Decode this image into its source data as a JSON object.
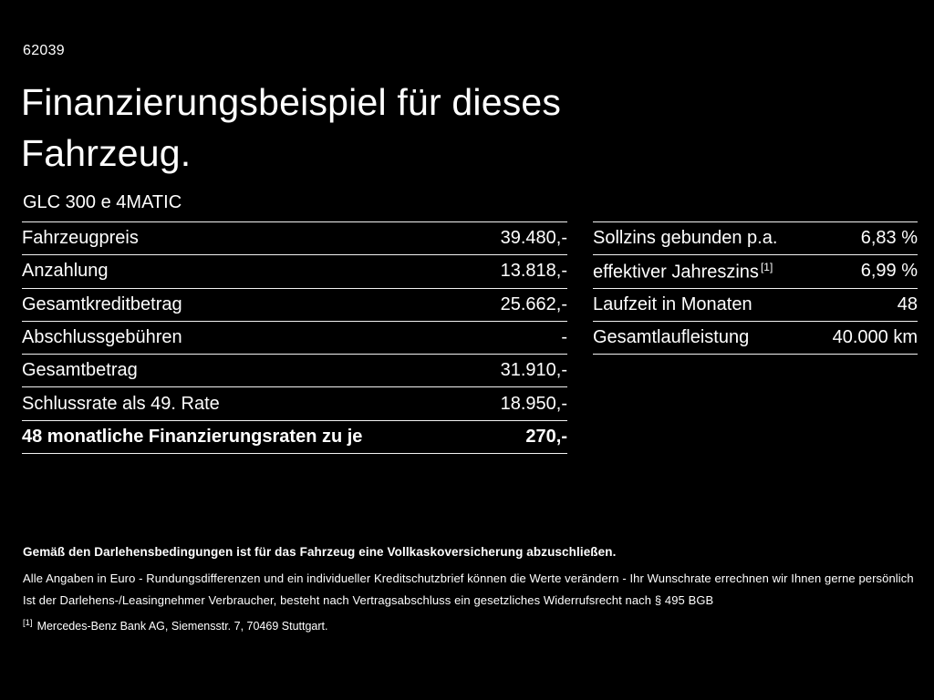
{
  "page": {
    "doc_id": "62039",
    "title_line1": "Finanzierungsbeispiel für dieses",
    "title_line2": "Fahrzeug.",
    "model": "GLC 300 e 4MATIC"
  },
  "left_table": {
    "rows": [
      {
        "label": "Fahrzeugpreis",
        "value": "39.480,-"
      },
      {
        "label": "Anzahlung",
        "value": "13.818,-"
      },
      {
        "label": "Gesamtkreditbetrag",
        "value": "25.662,-"
      },
      {
        "label": "Abschlussgebühren",
        "value": "-"
      },
      {
        "label": "Gesamtbetrag",
        "value": "31.910,-"
      },
      {
        "label": "Schlussrate als 49. Rate",
        "value": "18.950,-"
      },
      {
        "label": "48 monatliche Finanzierungsraten zu je",
        "value": "270,-"
      }
    ]
  },
  "right_table": {
    "rows": [
      {
        "label": "Sollzins gebunden p.a.",
        "value": "6,83 %"
      },
      {
        "label": "effektiver Jahreszins",
        "sup": "[1]",
        "value": "6,99 %"
      },
      {
        "label": "Laufzeit in Monaten",
        "value": "48"
      },
      {
        "label": "Gesamtlaufleistung",
        "value": "40.000 km"
      }
    ]
  },
  "footer": {
    "bold_line": "Gemäß den Darlehensbedingungen ist für das Fahrzeug eine Vollkaskoversicherung abzuschließen.",
    "line2": "Alle Angaben in Euro - Rundungsdifferenzen und ein individueller Kreditschutzbrief können die Werte verändern - Ihr Wunschrate errechnen wir Ihnen gerne persönlich",
    "line3": "Ist der Darlehens-/Leasingnehmer Verbraucher, besteht nach Vertragsabschluss ein gesetzliches Widerrufsrecht nach § 495 BGB",
    "footnote_marker": "[1]",
    "footnote_text": "Mercedes-Benz Bank AG, Siemensstr. 7, 70469 Stuttgart."
  },
  "colors": {
    "background": "#000000",
    "text": "#ffffff"
  }
}
